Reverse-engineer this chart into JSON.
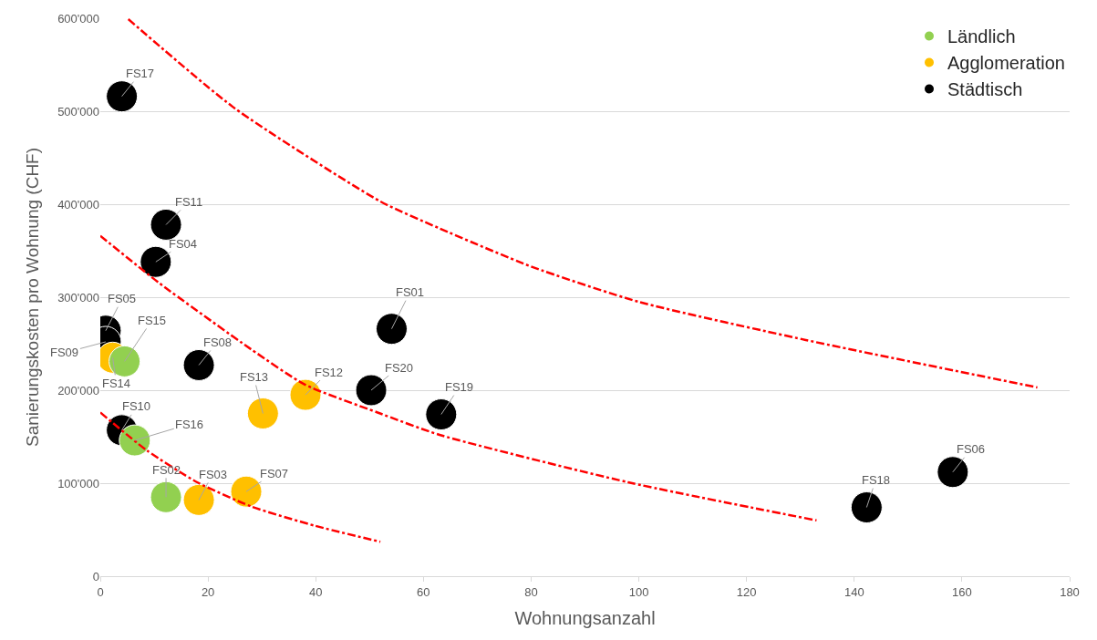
{
  "chart_data": {
    "type": "scatter",
    "xlabel": "Wohnungsanzahl",
    "ylabel": "Sanierungskosten pro Wohnung (CHF)",
    "xlim": [
      0,
      180
    ],
    "xticks": [
      0,
      20,
      40,
      60,
      80,
      100,
      120,
      140,
      160,
      180
    ],
    "ylim": [
      0,
      600000
    ],
    "yticks": [
      {
        "value": 0,
        "label": "0"
      },
      {
        "value": 100000,
        "label": "100'000"
      },
      {
        "value": 200000,
        "label": "200'000"
      },
      {
        "value": 300000,
        "label": "300'000"
      },
      {
        "value": 400000,
        "label": "400'000"
      },
      {
        "value": 500000,
        "label": "500'000"
      },
      {
        "value": 600000,
        "label": "600'000"
      }
    ],
    "grid": "y",
    "legend": "top right",
    "marker": "circle",
    "series": [
      {
        "type": "line",
        "marker": "none",
        "color": "#ff0000",
        "line_style": "dashdot",
        "x": [
          5.2,
          25,
          52,
          63,
          80,
          100,
          131,
          174
        ],
        "values": [
          599000,
          503000,
          403000,
          374000,
          333000,
          295000,
          254000,
          203000
        ]
      },
      {
        "type": "line",
        "marker": "none",
        "color": "#ff0000",
        "line_style": "dashdot",
        "x": [
          0,
          11,
          28,
          38,
          51.5,
          63,
          98,
          133
        ],
        "values": [
          366000,
          315000,
          244000,
          206000,
          176000,
          152000,
          101000,
          60000
        ]
      },
      {
        "type": "line",
        "marker": "none",
        "color": "#ff0000",
        "line_style": "dashdot",
        "x": [
          0,
          8.7,
          18,
          28,
          40,
          52
        ],
        "values": [
          176000,
          135000,
          101000,
          75000,
          54000,
          37000
        ]
      },
      {
        "name": "Ländlich",
        "color": "#92d050",
        "x": [
          4.5,
          6.4,
          12.2
        ],
        "values": [
          231000,
          146000,
          85000
        ]
      },
      {
        "name": "Agglomeration",
        "color": "#ffc000",
        "x": [
          2.3,
          30.2,
          38.1,
          18.3,
          27.1
        ],
        "values": [
          235000,
          175000,
          195000,
          82000,
          91000
        ]
      },
      {
        "name": "Städtisch",
        "color": "#000000",
        "x": [
          4,
          12.2,
          10.3,
          1,
          1,
          18.3,
          54.1,
          50.3,
          63.3,
          4,
          142.3,
          158.3
        ],
        "values": [
          516000,
          378000,
          338000,
          264000,
          252000,
          227000,
          266000,
          200000,
          174000,
          157000,
          74000,
          112000
        ]
      }
    ],
    "annotations": [
      {
        "text": "FS15",
        "x": 4.5,
        "y": 231000
      },
      {
        "text": "FS16",
        "x": 6.4,
        "y": 146000
      },
      {
        "text": "FS02",
        "x": 12.2,
        "y": 85000
      },
      {
        "text": "FS14",
        "x": 2.3,
        "y": 235000
      },
      {
        "text": "FS13",
        "x": 30.2,
        "y": 175000
      },
      {
        "text": "FS12",
        "x": 38.1,
        "y": 195000
      },
      {
        "text": "FS03",
        "x": 18.3,
        "y": 82000
      },
      {
        "text": "FS07",
        "x": 27.1,
        "y": 91000
      },
      {
        "text": "FS17",
        "x": 4,
        "y": 516000
      },
      {
        "text": "FS11",
        "x": 12.2,
        "y": 378000
      },
      {
        "text": "FS04",
        "x": 10.3,
        "y": 338000
      },
      {
        "text": "FS05",
        "x": 1,
        "y": 264000
      },
      {
        "text": "FS09",
        "x": 1,
        "y": 252000
      },
      {
        "text": "FS08",
        "x": 18.3,
        "y": 227000
      },
      {
        "text": "FS01",
        "x": 54.1,
        "y": 266000
      },
      {
        "text": "FS20",
        "x": 50.3,
        "y": 200000
      },
      {
        "text": "FS19",
        "x": 63.3,
        "y": 174000
      },
      {
        "text": "FS10",
        "x": 4,
        "y": 157000
      },
      {
        "text": "FS18",
        "x": 142.3,
        "y": 74000
      },
      {
        "text": "FS06",
        "x": 158.3,
        "y": 112000
      }
    ]
  }
}
